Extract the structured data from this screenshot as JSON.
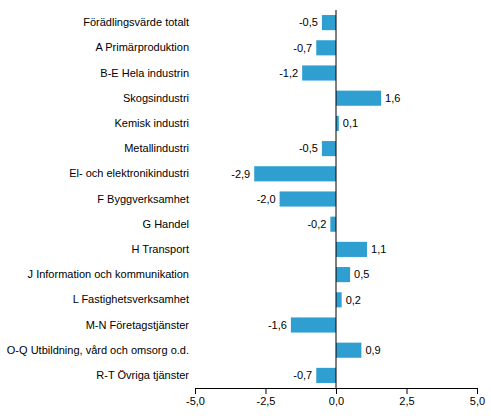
{
  "chart_data": {
    "type": "bar",
    "orientation": "horizontal",
    "categories": [
      "Förädlingsvärde totalt",
      "A Primärproduktion",
      "B-E Hela industrin",
      "Skogsindustri",
      "Kemisk industri",
      "Metallindustri",
      "El- och elektronikindustri",
      "F Byggverksamhet",
      "G Handel",
      "H Transport",
      "J Information och kommunikation",
      "L Fastighetsverksamhet",
      "M-N Företagstjänster",
      "O-Q Utbildning, vård och omsorg o.d.",
      "R-T Övriga tjänster"
    ],
    "values": [
      -0.5,
      -0.7,
      -1.2,
      1.6,
      0.1,
      -0.5,
      -2.9,
      -2.0,
      -0.2,
      1.1,
      0.5,
      0.2,
      -1.6,
      0.9,
      -0.7
    ],
    "value_labels": [
      "-0,5",
      "-0,7",
      "-1,2",
      "1,6",
      "0,1",
      "-0,5",
      "-2,9",
      "-2,0",
      "-0,2",
      "1,1",
      "0,5",
      "0,2",
      "-1,6",
      "0,9",
      "-0,7"
    ],
    "data_labels": true,
    "color": "#2E9FD0",
    "xlim": [
      -5.0,
      5.0
    ],
    "xticks": [
      {
        "value": -5.0,
        "label": "-5,0"
      },
      {
        "value": -2.5,
        "label": "-2,5"
      },
      {
        "value": 0.0,
        "label": "0,0"
      },
      {
        "value": 2.5,
        "label": "2,5"
      },
      {
        "value": 5.0,
        "label": "5,0"
      }
    ],
    "grid": false
  }
}
